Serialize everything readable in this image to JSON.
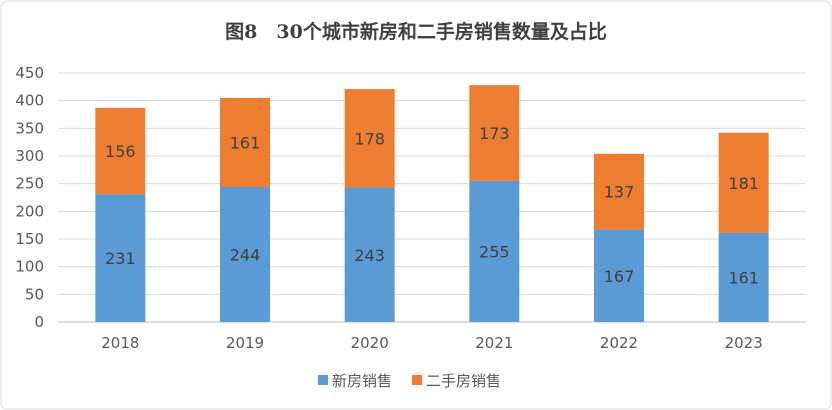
{
  "chart_data": {
    "type": "bar",
    "stacked": true,
    "title": "图8　30个城市新房和二手房销售数量及占比",
    "categories": [
      "2018",
      "2019",
      "2020",
      "2021",
      "2022",
      "2023"
    ],
    "series": [
      {
        "name": "新房销售",
        "color": "#5B9BD5",
        "values": [
          231,
          244,
          243,
          255,
          167,
          161
        ]
      },
      {
        "name": "二手房销售",
        "color": "#ED7D31",
        "values": [
          156,
          161,
          178,
          173,
          137,
          181
        ]
      }
    ],
    "xlabel": "",
    "ylabel": "",
    "ylim": [
      0,
      450
    ],
    "yticks": [
      0,
      50,
      100,
      150,
      200,
      250,
      300,
      350,
      400,
      450
    ],
    "grid": true,
    "legend": "bottom"
  }
}
